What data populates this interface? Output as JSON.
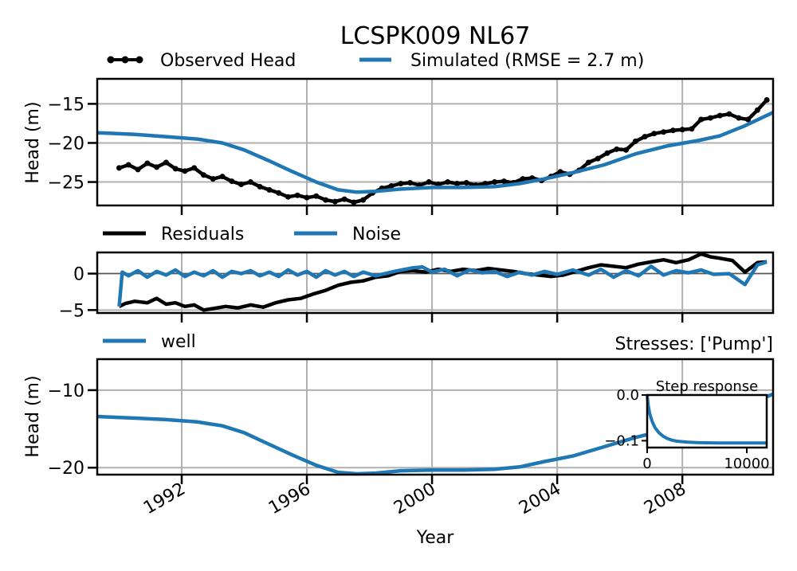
{
  "title": "LCSPK009 NL67",
  "colors": {
    "observed": "#000000",
    "simulated": "#1f77b4",
    "grid": "#b0b0b0"
  },
  "chart_data": [
    {
      "type": "line",
      "panel": "head",
      "ylabel": "Head (m)",
      "xlim": [
        1989.3,
        2010.9
      ],
      "ylim": [
        -28,
        -11.8
      ],
      "yticks": [
        -15,
        -20,
        -25
      ],
      "ytick_labels": [
        "−15",
        "−20",
        "−25"
      ],
      "grid": true,
      "legend_position": "top",
      "series": [
        {
          "name": "Observed Head",
          "style": "line-with-markers",
          "x": [
            1990.0,
            1990.3,
            1990.6,
            1990.9,
            1991.2,
            1991.5,
            1991.8,
            1992.1,
            1992.4,
            1992.7,
            1993.0,
            1993.3,
            1993.6,
            1993.9,
            1994.2,
            1994.5,
            1994.8,
            1995.1,
            1995.4,
            1995.7,
            1996.0,
            1996.3,
            1996.6,
            1996.9,
            1997.2,
            1997.5,
            1997.8,
            1998.1,
            1998.4,
            1998.7,
            1999.0,
            1999.3,
            1999.6,
            1999.9,
            2000.2,
            2000.5,
            2000.8,
            2001.1,
            2001.4,
            2001.7,
            2002.0,
            2002.3,
            2002.6,
            2002.9,
            2003.2,
            2003.5,
            2003.8,
            2004.1,
            2004.4,
            2004.7,
            2005.0,
            2005.3,
            2005.6,
            2005.9,
            2006.2,
            2006.5,
            2006.8,
            2007.1,
            2007.4,
            2007.7,
            2008.0,
            2008.3,
            2008.6,
            2008.9,
            2009.2,
            2009.5,
            2009.8,
            2010.1,
            2010.4,
            2010.7
          ],
          "y": [
            -23.2,
            -22.8,
            -23.4,
            -22.6,
            -23.1,
            -22.5,
            -23.3,
            -23.6,
            -23.2,
            -24.1,
            -24.6,
            -24.3,
            -24.9,
            -25.3,
            -25.0,
            -25.6,
            -26.0,
            -26.4,
            -26.9,
            -26.7,
            -27.0,
            -26.8,
            -27.3,
            -27.5,
            -27.2,
            -27.6,
            -27.3,
            -26.4,
            -25.8,
            -25.5,
            -25.2,
            -25.1,
            -25.4,
            -25.0,
            -25.3,
            -25.0,
            -25.2,
            -25.1,
            -25.4,
            -25.2,
            -25.0,
            -24.9,
            -25.1,
            -24.6,
            -24.5,
            -24.8,
            -24.3,
            -23.7,
            -24.0,
            -23.5,
            -22.5,
            -22.0,
            -21.3,
            -20.8,
            -20.9,
            -19.8,
            -19.2,
            -18.8,
            -18.6,
            -18.4,
            -18.3,
            -18.2,
            -17.0,
            -16.8,
            -16.5,
            -16.3,
            -16.8,
            -17.0,
            -15.8,
            -14.5
          ]
        },
        {
          "name": "Simulated (RMSE = 2.7 m)",
          "style": "line",
          "x": [
            1989.3,
            1990.5,
            1991.5,
            1992.5,
            1993.3,
            1994.0,
            1994.8,
            1995.5,
            1996.3,
            1997.0,
            1997.6,
            1998.2,
            1999.0,
            2000.0,
            2001.0,
            2002.0,
            2002.8,
            2003.6,
            2004.5,
            2005.5,
            2006.5,
            2007.5,
            2008.5,
            2009.2,
            2010.0,
            2010.9
          ],
          "y": [
            -18.7,
            -18.9,
            -19.2,
            -19.5,
            -20.0,
            -20.9,
            -22.3,
            -23.6,
            -25.0,
            -26.0,
            -26.3,
            -26.2,
            -25.9,
            -25.7,
            -25.7,
            -25.6,
            -25.2,
            -24.6,
            -23.8,
            -22.8,
            -21.4,
            -20.4,
            -19.7,
            -19.1,
            -17.8,
            -16.1
          ]
        }
      ]
    },
    {
      "type": "line",
      "panel": "residuals",
      "xlim": [
        1989.3,
        2010.9
      ],
      "ylim": [
        -5.4,
        2.9
      ],
      "yticks": [
        0,
        -5
      ],
      "ytick_labels": [
        "0",
        "−5"
      ],
      "grid": true,
      "legend_position": "top",
      "series": [
        {
          "name": "Residuals",
          "x": [
            1990.0,
            1990.2,
            1990.5,
            1990.9,
            1991.2,
            1991.5,
            1991.8,
            1992.1,
            1992.4,
            1992.7,
            1993.0,
            1993.4,
            1993.8,
            1994.2,
            1994.6,
            1995.0,
            1995.4,
            1995.8,
            1996.2,
            1996.6,
            1997.0,
            1997.4,
            1997.8,
            1998.2,
            1998.6,
            1999.0,
            1999.4,
            1999.8,
            2000.2,
            2000.6,
            2001.0,
            2001.4,
            2001.8,
            2002.2,
            2002.6,
            2003.0,
            2003.4,
            2003.8,
            2004.2,
            2004.6,
            2005.0,
            2005.4,
            2005.8,
            2006.2,
            2006.6,
            2007.0,
            2007.4,
            2007.8,
            2008.2,
            2008.6,
            2008.9,
            2009.2,
            2009.6,
            2010.0,
            2010.4,
            2010.7
          ],
          "y": [
            -4.5,
            -4.1,
            -3.8,
            -4.0,
            -3.4,
            -4.2,
            -4.0,
            -4.5,
            -4.3,
            -5.0,
            -4.8,
            -4.5,
            -4.7,
            -4.3,
            -4.6,
            -4.0,
            -3.6,
            -3.4,
            -2.8,
            -2.3,
            -1.6,
            -1.2,
            -1.0,
            -0.5,
            -0.3,
            0.3,
            0.4,
            0.2,
            0.6,
            0.3,
            0.6,
            0.4,
            0.7,
            0.5,
            0.3,
            0.0,
            -0.2,
            -0.4,
            -0.2,
            0.3,
            0.8,
            1.2,
            1.0,
            0.8,
            1.3,
            1.6,
            1.9,
            1.5,
            1.9,
            2.7,
            2.3,
            2.1,
            1.8,
            0.2,
            1.5,
            1.6
          ]
        },
        {
          "name": "Noise",
          "x": [
            1990.0,
            1990.1,
            1990.3,
            1990.6,
            1990.9,
            1991.2,
            1991.5,
            1991.8,
            1992.1,
            1992.4,
            1992.7,
            1993.0,
            1993.3,
            1993.6,
            1993.9,
            1994.2,
            1994.5,
            1994.8,
            1995.1,
            1995.4,
            1995.7,
            1996.0,
            1996.3,
            1996.6,
            1996.9,
            1997.2,
            1997.5,
            1997.8,
            1998.2,
            1998.8,
            1999.4,
            1999.7,
            2000.0,
            2000.4,
            2000.8,
            2001.2,
            2001.6,
            2002.0,
            2002.4,
            2002.8,
            2003.2,
            2003.6,
            2004.0,
            2004.5,
            2005.0,
            2005.4,
            2005.8,
            2006.2,
            2006.6,
            2007.0,
            2007.4,
            2007.8,
            2008.2,
            2008.6,
            2009.0,
            2009.5,
            2010.0,
            2010.4,
            2010.7
          ],
          "y": [
            -4.5,
            0.2,
            -0.3,
            0.4,
            -0.5,
            0.3,
            -0.2,
            0.5,
            -0.4,
            0.2,
            -0.3,
            0.4,
            -0.5,
            0.3,
            0.0,
            0.4,
            -0.3,
            0.2,
            -0.4,
            0.5,
            -0.2,
            0.3,
            -0.5,
            0.4,
            -0.2,
            0.3,
            -0.4,
            0.2,
            -0.3,
            0.3,
            0.8,
            0.9,
            0.2,
            0.6,
            -0.3,
            0.5,
            0.1,
            0.3,
            -0.4,
            0.2,
            -0.2,
            0.3,
            -0.1,
            0.5,
            -0.2,
            0.6,
            -0.5,
            0.4,
            -0.3,
            1.0,
            -0.2,
            0.4,
            0.1,
            0.5,
            -0.1,
            0.0,
            -1.5,
            1.2,
            1.6
          ]
        }
      ]
    },
    {
      "type": "line",
      "panel": "contribution",
      "ylabel": "Head (m)",
      "xlabel": "Year",
      "right_title": "Stresses: ['Pump']",
      "xlim": [
        1989.3,
        2010.9
      ],
      "ylim": [
        -20.9,
        -6
      ],
      "yticks": [
        -10,
        -20
      ],
      "ytick_labels": [
        "−10",
        "−20"
      ],
      "xticks": [
        1992,
        1996,
        2000,
        2004,
        2008
      ],
      "xtick_labels": [
        "1992",
        "1996",
        "2000",
        "2004",
        "2008"
      ],
      "grid": true,
      "legend_position": "top-left",
      "series": [
        {
          "name": "well",
          "x": [
            1989.3,
            1990.5,
            1991.5,
            1992.5,
            1993.3,
            1994.0,
            1994.8,
            1995.5,
            1996.3,
            1997.0,
            1997.6,
            1998.2,
            1999.0,
            2000.0,
            2001.0,
            2002.0,
            2002.8,
            2003.6,
            2004.5,
            2005.5,
            2006.5,
            2007.5,
            2008.5,
            2009.2,
            2010.0,
            2010.9
          ],
          "y": [
            -13.4,
            -13.6,
            -13.8,
            -14.1,
            -14.6,
            -15.5,
            -17.0,
            -18.3,
            -19.7,
            -20.6,
            -20.8,
            -20.7,
            -20.4,
            -20.3,
            -20.3,
            -20.2,
            -19.9,
            -19.2,
            -18.5,
            -17.3,
            -16.1,
            -15.1,
            -14.4,
            -13.6,
            -12.0,
            -10.5
          ]
        }
      ]
    },
    {
      "type": "line",
      "panel": "step-response-inset",
      "title": "Step response",
      "xlim": [
        0,
        12000
      ],
      "ylim": [
        -0.115,
        0.0
      ],
      "yticks": [
        0.0,
        -0.1
      ],
      "ytick_labels": [
        "0.0",
        "−0.1"
      ],
      "xticks": [
        0,
        10000
      ],
      "xtick_labels": [
        "0",
        "10000"
      ],
      "grid": false,
      "series": [
        {
          "x": [
            0,
            100,
            250,
            500,
            800,
            1200,
            1600,
            2000,
            2500,
            3000,
            4000,
            5000,
            6000,
            7000,
            8000,
            9000,
            10000,
            11000,
            12000
          ],
          "y": [
            0.0,
            -0.022,
            -0.04,
            -0.058,
            -0.072,
            -0.083,
            -0.09,
            -0.095,
            -0.099,
            -0.101,
            -0.103,
            -0.104,
            -0.1045,
            -0.105,
            -0.105,
            -0.105,
            -0.105,
            -0.105,
            -0.105
          ]
        }
      ]
    }
  ]
}
